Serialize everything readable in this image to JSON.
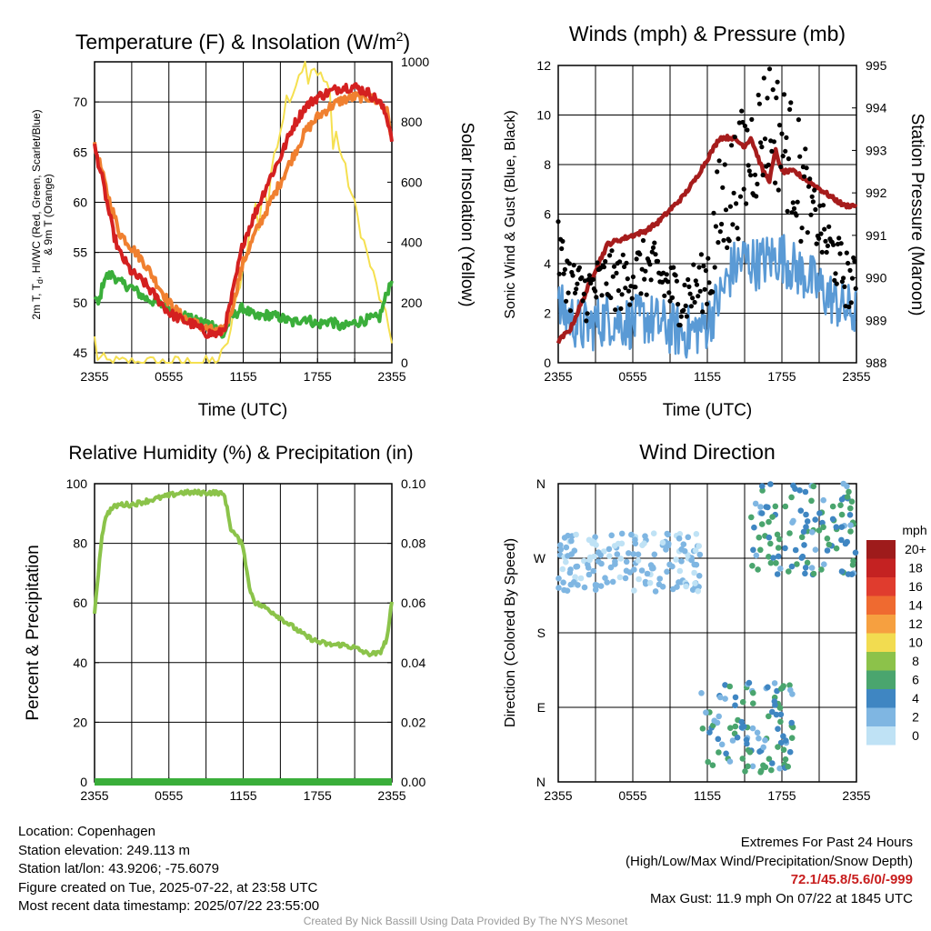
{
  "chart_data": [
    {
      "type": "line",
      "title": "Temperature (F) & Insolation (W/m",
      "title_superscript": "2",
      "title_suffix": ")",
      "xlabel": "Time (UTC)",
      "ylabel_lines": [
        "2m T, T",
        "d",
        ", HI/WC (Red, Green, Scarlet/Blue)",
        "& 9m T (Orange)"
      ],
      "y2label": "Solar Insolation (Yellow)",
      "ylim": [
        44,
        74
      ],
      "y_ticks": [
        45,
        50,
        55,
        60,
        65,
        70
      ],
      "y2lim": [
        0,
        1000
      ],
      "y2_ticks": [
        0,
        200,
        400,
        600,
        800,
        1000
      ],
      "x_tick_labels": [
        "2355",
        "0555",
        "1155",
        "1755",
        "2355"
      ],
      "series": [
        {
          "role": "2m Temperature",
          "color": "#d42020",
          "axis": "left",
          "x": [
            0,
            0.5,
            1,
            1.5,
            2,
            3,
            4,
            5,
            6,
            7,
            8,
            9,
            10,
            10.5,
            11,
            12,
            13,
            14,
            15,
            16,
            17,
            18,
            19,
            20,
            21,
            22,
            23,
            23.6,
            24
          ],
          "values": [
            65.5,
            63,
            60,
            57,
            55,
            53,
            52,
            50.5,
            49,
            48.3,
            47.8,
            47,
            46.8,
            47.5,
            50,
            56,
            59,
            62,
            64.5,
            67.5,
            69.5,
            70.5,
            71,
            71.5,
            71.5,
            71,
            70,
            68.5,
            66.5
          ]
        },
        {
          "role": "9m Temperature",
          "color": "#f08030",
          "axis": "left",
          "x": [
            0,
            0.5,
            1,
            2,
            3,
            4,
            5,
            6,
            7,
            8,
            9,
            10,
            10.5,
            11,
            12,
            13,
            14,
            15,
            16,
            17,
            18,
            19,
            20,
            21,
            22,
            23,
            23.6,
            24
          ],
          "values": [
            65.5,
            63.5,
            61,
            57,
            55.5,
            54,
            52,
            50,
            48.7,
            48,
            47.4,
            47,
            47.5,
            49,
            54,
            57,
            59.5,
            62,
            64.5,
            67,
            68.5,
            69.5,
            70.2,
            70.5,
            70.5,
            70,
            69,
            66.5
          ]
        },
        {
          "role": "2m Dewpoint",
          "color": "#3aae3a",
          "axis": "left",
          "x": [
            0,
            0.3,
            0.8,
            1.5,
            2,
            3,
            4,
            5,
            6,
            7,
            8,
            9,
            9.8,
            10.3,
            11,
            12,
            13,
            14,
            15,
            16,
            17,
            18,
            19,
            20,
            21,
            22,
            23,
            23.5,
            24
          ],
          "values": [
            50.5,
            49.8,
            52.5,
            52.8,
            52,
            51.5,
            50.5,
            50,
            49.4,
            48.8,
            48.2,
            48,
            47.7,
            46.5,
            48.5,
            49.5,
            48.5,
            48.8,
            48.5,
            48,
            48.5,
            47.8,
            48.2,
            47.5,
            48,
            48.3,
            48.5,
            50.5,
            52.5
          ]
        },
        {
          "role": "Solar Insolation",
          "color": "#f5e050",
          "axis": "right",
          "x": [
            0,
            0.2,
            1,
            3,
            5,
            7,
            9,
            10,
            10.5,
            11,
            11.5,
            12,
            12.5,
            13,
            13.3,
            13.6,
            14,
            14.5,
            15,
            15.5,
            16,
            16.5,
            17,
            17.2,
            17.5,
            18,
            18.5,
            19,
            19.2,
            19.5,
            20,
            21,
            22,
            23,
            24
          ],
          "values": [
            80,
            20,
            2,
            0,
            0,
            0,
            0,
            10,
            40,
            110,
            220,
            320,
            420,
            520,
            440,
            600,
            520,
            700,
            780,
            880,
            900,
            960,
            1000,
            920,
            970,
            950,
            960,
            900,
            700,
            760,
            680,
            520,
            360,
            220,
            80
          ]
        }
      ]
    },
    {
      "type": "scatter",
      "title": "Winds (mph) & Pressure (mb)",
      "xlabel": "Time (UTC)",
      "ylabel": "Sonic Wind & Gust (Blue, Black)",
      "y2label": "Station Pressure (Maroon)",
      "ylim": [
        0,
        12
      ],
      "y_ticks": [
        0,
        2,
        4,
        6,
        8,
        10,
        12
      ],
      "y2lim": [
        988,
        995
      ],
      "y2_ticks": [
        988,
        989,
        990,
        991,
        992,
        993,
        994,
        995
      ],
      "x_tick_labels": [
        "2355",
        "0555",
        "1155",
        "1755",
        "2355"
      ],
      "series": [
        {
          "role": "Sonic Wind Speed",
          "color": "#5a9ad5",
          "axis": "left",
          "x": [
            0,
            1,
            2,
            3,
            4,
            5,
            6,
            7,
            8,
            9,
            10,
            11,
            12,
            13,
            14,
            15,
            16,
            17,
            18,
            19,
            20,
            21,
            22,
            23,
            24
          ],
          "values": [
            2.2,
            1.8,
            1.4,
            1.6,
            1.8,
            1.7,
            1.6,
            1.8,
            1.6,
            1.4,
            1.2,
            1.3,
            1.6,
            2.6,
            3.8,
            4.2,
            4.0,
            4.2,
            4.3,
            3.8,
            3.5,
            3.0,
            2.6,
            2.2,
            2.0
          ]
        },
        {
          "role": "Wind Gust",
          "color": "#000000",
          "axis": "left",
          "x": [
            0,
            1,
            2,
            3,
            4,
            5,
            6,
            7,
            8,
            9,
            10,
            11,
            12,
            13,
            14,
            15,
            16,
            17,
            18,
            19,
            20,
            21,
            22,
            23,
            24
          ],
          "values": [
            4.5,
            3.2,
            2.8,
            3.0,
            3.4,
            3.2,
            3.6,
            3.8,
            3.6,
            3.0,
            2.6,
            3.0,
            3.4,
            6.0,
            7.0,
            8.0,
            9.0,
            10.0,
            9.0,
            8.0,
            6.5,
            5.5,
            4.5,
            3.5,
            3.0
          ]
        },
        {
          "role": "Station Pressure",
          "color": "#a61c1c",
          "axis": "right",
          "x": [
            0,
            1,
            2,
            3,
            4,
            5,
            6,
            7,
            8,
            9,
            10,
            11,
            12,
            13,
            14,
            15,
            15.5,
            16,
            16.5,
            17,
            17.5,
            18,
            19,
            20,
            21,
            22,
            23,
            24
          ],
          "values": [
            988.5,
            988.8,
            989.5,
            990.2,
            990.8,
            990.9,
            991.0,
            991.1,
            991.3,
            991.6,
            991.9,
            992.3,
            992.8,
            993.3,
            993.3,
            993.1,
            993.3,
            992.9,
            992.5,
            992.3,
            993.0,
            992.5,
            992.5,
            992.3,
            992.1,
            991.9,
            991.7,
            991.7
          ]
        }
      ]
    },
    {
      "type": "line",
      "title": "Relative Humidity (%) & Precipitation (in)",
      "ylabel": "Percent & Precipitation",
      "ylim": [
        0,
        100
      ],
      "y_ticks": [
        0,
        20,
        40,
        60,
        80,
        100
      ],
      "y2lim": [
        0,
        0.1
      ],
      "y2_tick_labels": [
        "0.00",
        "0.02",
        "0.04",
        "0.06",
        "0.08",
        "0.10"
      ],
      "x_tick_labels": [
        "2355",
        "0555",
        "1155",
        "1755",
        "2355"
      ],
      "series": [
        {
          "role": "Relative Humidity",
          "color": "#8bc34a",
          "axis": "left",
          "x": [
            0,
            0.3,
            0.6,
            1,
            1.5,
            2,
            3,
            4,
            5,
            6,
            7,
            8,
            9,
            10,
            10.5,
            11,
            11.5,
            12,
            12.5,
            13,
            14,
            15,
            16,
            17,
            18,
            19,
            20,
            21,
            22,
            23,
            23.6,
            24
          ],
          "values": [
            57,
            70,
            83,
            90,
            92,
            93,
            93,
            94,
            95,
            96,
            97,
            97,
            97,
            97,
            96,
            85,
            82,
            79,
            65,
            60,
            58,
            55,
            52,
            49,
            47,
            46,
            46,
            45,
            43,
            43,
            48,
            60
          ]
        },
        {
          "role": "Precipitation",
          "color": "#3aae3a",
          "axis": "right",
          "x": [
            0,
            24
          ],
          "values": [
            0,
            0
          ]
        }
      ]
    },
    {
      "type": "scatter",
      "title": "Wind Direction",
      "ylabel": "Direction (Colored By Speed)",
      "y_tick_labels": [
        "N",
        "E",
        "S",
        "W",
        "N"
      ],
      "ylim": [
        0,
        360
      ],
      "x_tick_labels": [
        "2355",
        "0555",
        "1155",
        "1755",
        "2355"
      ],
      "legend": {
        "title": "mph",
        "placement": "right",
        "labels": [
          "20+",
          "18",
          "16",
          "14",
          "12",
          "10",
          "8",
          "6",
          "4",
          "2",
          "0"
        ],
        "colors": [
          "#9e1b1b",
          "#c42222",
          "#e03c2e",
          "#ef6a30",
          "#f6a040",
          "#f2dc50",
          "#8cc24a",
          "#4aa56e",
          "#3f86c2",
          "#7fb6e2",
          "#bfe2f5"
        ]
      },
      "clusters": [
        {
          "x_range": [
            0,
            11.5
          ],
          "dir_range": [
            230,
            300
          ],
          "speed_range": [
            0,
            3
          ]
        },
        {
          "x_range": [
            11.5,
            19
          ],
          "dir_range": [
            10,
            120
          ],
          "speed_range": [
            1,
            7
          ]
        },
        {
          "x_range": [
            15.5,
            24
          ],
          "dir_range": [
            250,
            360
          ],
          "speed_range": [
            2,
            7
          ]
        }
      ]
    }
  ],
  "info_left": [
    "Location: Copenhagen",
    "Station elevation: 249.113 m",
    "Station lat/lon: 43.9206; -75.6079",
    "Figure created on Tue, 2025-07-22, at 23:58 UTC",
    "Most recent data timestamp: 2025/07/22 23:55:00"
  ],
  "info_right": {
    "line1": "Extremes For Past 24 Hours",
    "line2": "(High/Low/Max Wind/Precipitation/Snow Depth)",
    "extremes": "72.1/45.8/5.6/0/-999",
    "max_gust": "Max Gust: 11.9 mph On 07/22 at 1845 UTC"
  },
  "credit": "Created By Nick Bassill Using Data Provided By The NYS Mesonet"
}
